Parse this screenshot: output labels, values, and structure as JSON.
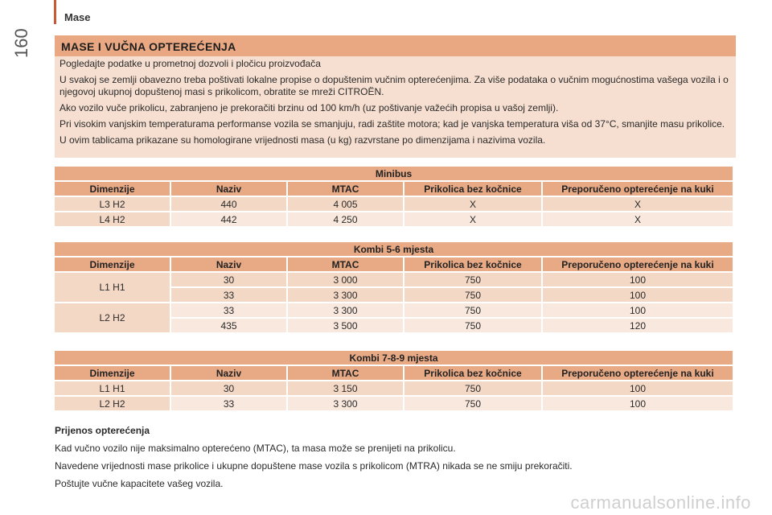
{
  "header": {
    "section": "Mase",
    "page_number": "160"
  },
  "intro": {
    "title": "MASE I VUČNA OPTEREĆENJA",
    "paragraphs": [
      "Pogledajte podatke u prometnoj dozvoli i pločicu proizvođača",
      "U svakoj se zemlji obavezno treba poštivati lokalne propise o dopuštenim vučnim opterećenjima. Za više podataka o vučnim mogućnostima vašega vozila i o njegovoj ukupnoj dopuštenoj masi s prikolicom, obratite se mreži CITROËN.",
      "Ako vozilo vuče prikolicu, zabranjeno je prekoračiti brzinu od 100 km/h (uz poštivanje važećih propisa u vašoj zemlji).",
      "Pri visokim vanjskim temperaturama performanse vozila se smanjuju, radi zaštite motora; kad je vanjska temperatura viša od 37°C, smanjite masu prikolice.",
      "U ovim tablicama prikazane su homologirane vrijednosti masa (u kg) razvrstane po dimenzijama i nazivima vozila."
    ]
  },
  "columns": [
    "Dimenzije",
    "Naziv",
    "MTAC",
    "Prikolica bez kočnice",
    "Preporučeno opterećenje na kuki"
  ],
  "tables": {
    "minibus": {
      "title": "Minibus",
      "rows": [
        [
          "L3 H2",
          "440",
          "4 005",
          "X",
          "X"
        ],
        [
          "L4 H2",
          "442",
          "4 250",
          "X",
          "X"
        ]
      ]
    },
    "kombi56": {
      "title": "Kombi 5-6 mjesta",
      "groups": [
        {
          "dim": "L1 H1",
          "rows": [
            [
              "30",
              "3 000",
              "750",
              "100"
            ],
            [
              "33",
              "3 300",
              "750",
              "100"
            ]
          ]
        },
        {
          "dim": "L2 H2",
          "rows": [
            [
              "33",
              "3 300",
              "750",
              "100"
            ],
            [
              "435",
              "3 500",
              "750",
              "120"
            ]
          ]
        }
      ]
    },
    "kombi789": {
      "title": "Kombi 7-8-9 mjesta",
      "rows": [
        [
          "L1 H1",
          "30",
          "3 150",
          "750",
          "100"
        ],
        [
          "L2 H2",
          "33",
          "3 300",
          "750",
          "100"
        ]
      ]
    }
  },
  "footer": {
    "title": "Prijenos opterećenja",
    "paragraphs": [
      "Kad vučno vozilo nije maksimalno opterećeno (MTAC), ta masa može se prenijeti na prikolicu.",
      "Navedene vrijednosti mase prikolice i ukupne dopuštene mase vozila s prikolicom (MTRA) nikada se ne smiju prekoračiti.",
      "Poštujte vučne kapacitete vašeg vozila."
    ]
  },
  "watermark": "carmanualsonline.info"
}
